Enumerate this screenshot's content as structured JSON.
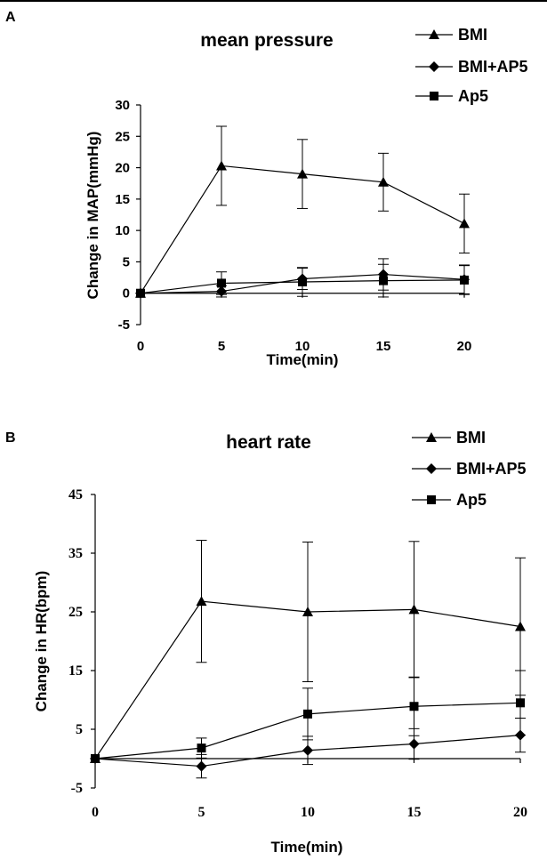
{
  "chart_data": [
    {
      "panel": "A",
      "type": "line",
      "title": "mean pressure",
      "xlabel": "Time(min)",
      "ylabel": "Change in MAP(mmHg)",
      "x": [
        0,
        5,
        10,
        15,
        20
      ],
      "xticks": [
        "0",
        "5",
        "10",
        "15",
        "20"
      ],
      "yticks": [
        "-5",
        "0",
        "5",
        "10",
        "15",
        "20",
        "25",
        "30"
      ],
      "ylim": [
        -5,
        30
      ],
      "xlim": [
        0,
        20
      ],
      "grid": false,
      "legend_position": "top-right",
      "series": [
        {
          "name": "BMI",
          "marker": "triangle",
          "values": [
            0,
            20.3,
            19.0,
            17.7,
            11.1
          ],
          "errors": [
            0,
            6.3,
            5.5,
            4.6,
            4.7
          ]
        },
        {
          "name": "BMI+AP5",
          "marker": "diamond",
          "values": [
            0,
            0.3,
            2.3,
            3.0,
            2.2
          ],
          "errors": [
            0,
            0.9,
            1.7,
            2.5,
            2.3
          ]
        },
        {
          "name": "Ap5",
          "marker": "square",
          "values": [
            0,
            1.6,
            1.8,
            2.0,
            2.1
          ],
          "errors": [
            0,
            1.8,
            2.3,
            2.6,
            2.3
          ]
        }
      ]
    },
    {
      "panel": "B",
      "type": "line",
      "title": "heart rate",
      "xlabel": "Time(min)",
      "ylabel": "Change in HR(bpm)",
      "x": [
        0,
        5,
        10,
        15,
        20
      ],
      "xticks": [
        "0",
        "5",
        "10",
        "15",
        "20"
      ],
      "yticks": [
        "-5",
        "5",
        "15",
        "25",
        "35",
        "45"
      ],
      "ylim": [
        -5,
        45
      ],
      "xlim": [
        0,
        20
      ],
      "grid": false,
      "legend_position": "top-right",
      "series": [
        {
          "name": "BMI",
          "marker": "triangle",
          "values": [
            0,
            26.8,
            25.0,
            25.4,
            22.5
          ],
          "errors": [
            0,
            10.4,
            11.9,
            11.6,
            11.7
          ]
        },
        {
          "name": "BMI+AP5",
          "marker": "diamond",
          "values": [
            0,
            -1.3,
            1.4,
            2.5,
            4.0
          ],
          "errors": [
            0,
            2.0,
            2.4,
            2.6,
            2.9
          ]
        },
        {
          "name": "Ap5",
          "marker": "square",
          "values": [
            0,
            1.8,
            7.6,
            8.9,
            9.5
          ],
          "errors": [
            0,
            1.7,
            4.4,
            5.0,
            5.5
          ]
        }
      ]
    }
  ]
}
